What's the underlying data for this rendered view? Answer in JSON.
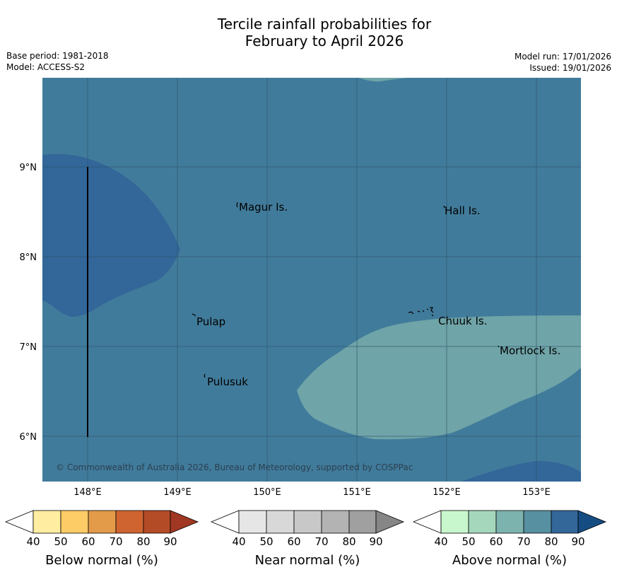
{
  "title": {
    "line1": "Tercile rainfall probabilities for",
    "line2": "February to April 2026"
  },
  "meta": {
    "base_period": "Base period: 1981-2018",
    "model": "Model: ACCESS-S2",
    "model_run": "Model run: 17/01/2026",
    "issued": "Issued: 19/01/2026"
  },
  "map": {
    "x_ticks": [
      "148°E",
      "149°E",
      "150°E",
      "151°E",
      "152°E",
      "153°E"
    ],
    "y_ticks": [
      "9°N",
      "8°N",
      "7°N",
      "6°N"
    ],
    "places": [
      "Magur Is.",
      "Hall Is.",
      "Pulap",
      "Chuuk Is.",
      "Mortlock Is.",
      "Pulusuk"
    ],
    "copyright": "© Commonwealth of Australia 2026, Bureau of Meteorology, supported by COSPPac",
    "colors": {
      "above_70_80": "#417b9b",
      "above_80_90": "#336699",
      "above_60_70": "#6fa4a8",
      "grid": "#2a4f66"
    }
  },
  "legends": [
    {
      "name": "Below normal (%)",
      "ticks": [
        "40",
        "50",
        "60",
        "70",
        "80",
        "90"
      ],
      "colors": [
        "#ffffff",
        "#ffeea1",
        "#fecc66",
        "#e39b4a",
        "#cf6431",
        "#b44b27",
        "#a13823"
      ]
    },
    {
      "name": "Near normal (%)",
      "ticks": [
        "40",
        "50",
        "60",
        "70",
        "80",
        "90"
      ],
      "colors": [
        "#ffffff",
        "#e6e6e6",
        "#d8d8d8",
        "#c8c8c8",
        "#b3b3b3",
        "#a0a0a0",
        "#868686"
      ]
    },
    {
      "name": "Above normal (%)",
      "ticks": [
        "40",
        "50",
        "60",
        "70",
        "80",
        "90"
      ],
      "colors": [
        "#ffffff",
        "#c8f6cd",
        "#a5d7bd",
        "#7db3ae",
        "#5790a0",
        "#336699",
        "#154d82"
      ]
    }
  ]
}
